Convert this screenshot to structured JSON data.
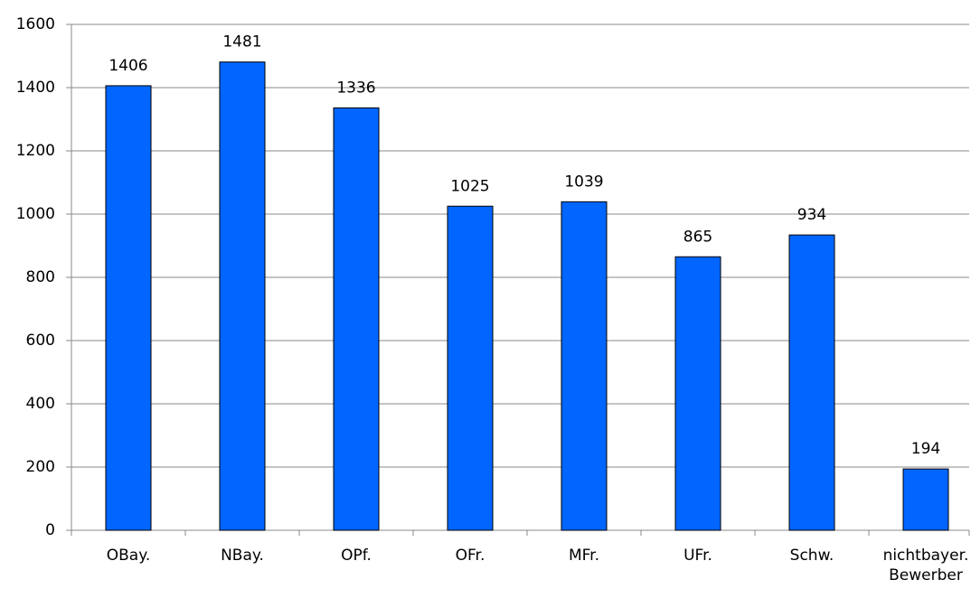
{
  "chart_data": {
    "type": "bar",
    "categories": [
      "OBay.",
      "NBay.",
      "OPf.",
      "OFr.",
      "MFr.",
      "UFr.",
      "Schw.",
      "nichtbayer. Bewerber"
    ],
    "values": [
      1406,
      1481,
      1336,
      1025,
      1039,
      865,
      934,
      194
    ],
    "color": "#0066ff",
    "ylim": [
      0,
      1600
    ],
    "yticks": [
      0,
      200,
      400,
      600,
      800,
      1000,
      1200,
      1400,
      1600
    ],
    "grid": true
  }
}
